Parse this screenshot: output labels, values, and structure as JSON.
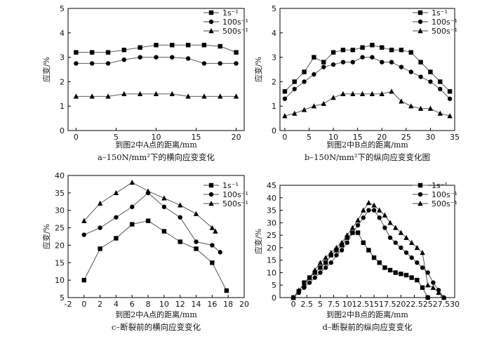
{
  "chart_data": [
    {
      "panel": "a",
      "type": "line",
      "caption": "a–150N/mm²下的横向应变变化",
      "xlabel": "到图2中A点的距离/mm",
      "ylabel": "应变/%",
      "xlim": [
        -1,
        21
      ],
      "ylim": [
        0,
        5
      ],
      "xticks": [
        0,
        5,
        10,
        15,
        20
      ],
      "yticks": [
        0,
        1,
        2,
        3,
        4,
        5
      ],
      "legend_position": "top-right",
      "series": [
        {
          "name": "1s⁻¹",
          "marker": "square",
          "x": [
            0,
            2,
            4,
            6,
            8,
            10,
            12,
            14,
            16,
            18,
            20
          ],
          "values": [
            3.2,
            3.2,
            3.2,
            3.3,
            3.4,
            3.5,
            3.5,
            3.5,
            3.5,
            3.45,
            3.2
          ]
        },
        {
          "name": "100s⁻¹",
          "marker": "circle",
          "x": [
            0,
            2,
            4,
            6,
            8,
            10,
            12,
            14,
            16,
            18,
            20
          ],
          "values": [
            2.75,
            2.75,
            2.75,
            2.9,
            3.0,
            3.0,
            3.0,
            2.95,
            2.75,
            2.75,
            2.75
          ]
        },
        {
          "name": "500s⁻¹",
          "marker": "triangle",
          "x": [
            0,
            2,
            4,
            6,
            8,
            10,
            12,
            14,
            16,
            18,
            20
          ],
          "values": [
            1.4,
            1.4,
            1.4,
            1.5,
            1.5,
            1.5,
            1.5,
            1.4,
            1.4,
            1.4,
            1.4
          ]
        }
      ]
    },
    {
      "panel": "b",
      "type": "line",
      "caption": "b–150N/mm²下的纵向应变变化图",
      "xlabel": "到图2中B点的距离/mm",
      "ylabel": "应变/%",
      "xlim": [
        -1,
        35
      ],
      "ylim": [
        0,
        5
      ],
      "xticks": [
        0,
        5,
        10,
        15,
        20,
        25,
        30,
        35
      ],
      "yticks": [
        0,
        1,
        2,
        3,
        4,
        5
      ],
      "legend_position": "top-right",
      "series": [
        {
          "name": "1s⁻¹",
          "marker": "square",
          "x": [
            0,
            2,
            4,
            6,
            8,
            10,
            12,
            14,
            16,
            18,
            20,
            22,
            24,
            26,
            28,
            30,
            32,
            34
          ],
          "values": [
            1.6,
            2.0,
            2.4,
            3.0,
            2.8,
            3.2,
            3.3,
            3.3,
            3.4,
            3.5,
            3.4,
            3.3,
            3.3,
            3.2,
            2.8,
            2.4,
            2.0,
            1.6
          ]
        },
        {
          "name": "100s⁻¹",
          "marker": "circle",
          "x": [
            0,
            2,
            4,
            6,
            8,
            10,
            12,
            14,
            16,
            18,
            20,
            22,
            24,
            26,
            28,
            30,
            32,
            34
          ],
          "values": [
            1.3,
            1.7,
            2.0,
            2.3,
            2.6,
            2.7,
            2.8,
            2.8,
            3.0,
            3.0,
            2.8,
            2.8,
            2.6,
            2.4,
            2.2,
            2.0,
            1.7,
            1.3
          ]
        },
        {
          "name": "500s⁻¹",
          "marker": "triangle",
          "x": [
            0,
            2,
            4,
            6,
            8,
            10,
            12,
            14,
            16,
            18,
            20,
            22,
            24,
            26,
            28,
            30,
            32,
            34
          ],
          "values": [
            0.6,
            0.7,
            0.85,
            1.0,
            1.1,
            1.35,
            1.5,
            1.5,
            1.5,
            1.5,
            1.5,
            1.6,
            1.2,
            1.0,
            0.9,
            0.9,
            0.7,
            0.6
          ]
        }
      ]
    },
    {
      "panel": "c",
      "type": "line",
      "caption": "c–断裂前的横向应变变化",
      "xlabel": "到图2中A点的距离/mm",
      "ylabel": "应变/%",
      "xlim": [
        -2,
        20
      ],
      "ylim": [
        5,
        40
      ],
      "xticks": [
        -2,
        0,
        2,
        4,
        6,
        8,
        10,
        12,
        14,
        16,
        18,
        20
      ],
      "yticks": [
        5,
        10,
        15,
        20,
        25,
        30,
        35,
        40
      ],
      "legend_position": "top-right",
      "series": [
        {
          "name": "1s⁻¹",
          "marker": "square",
          "x": [
            0,
            2,
            4,
            6,
            8,
            10,
            12,
            14,
            16,
            17.8
          ],
          "values": [
            10,
            19,
            22,
            26,
            27,
            24,
            21,
            19,
            15,
            7
          ]
        },
        {
          "name": "100s⁻¹",
          "marker": "circle",
          "x": [
            0,
            2,
            4,
            6,
            8,
            10,
            12,
            14,
            16,
            17
          ],
          "values": [
            23,
            25,
            28,
            31,
            35,
            31,
            28,
            21,
            20,
            18
          ]
        },
        {
          "name": "500s⁻¹",
          "marker": "triangle",
          "x": [
            0,
            2,
            4,
            6,
            8,
            10,
            12,
            14,
            16,
            16.4
          ],
          "values": [
            27,
            32,
            35,
            38,
            35.5,
            33.5,
            31.5,
            29,
            25,
            24
          ]
        }
      ]
    },
    {
      "panel": "d",
      "type": "line",
      "caption": "d–断裂前的纵向应变变化",
      "xlabel": "到图2中B点的距离/mm",
      "ylabel": "应变/%",
      "xlim": [
        -2.5,
        30
      ],
      "ylim": [
        0,
        45
      ],
      "xticks": [
        0,
        2.5,
        5,
        7.5,
        10,
        12.5,
        15,
        17.5,
        20,
        22.5,
        25,
        27.5,
        30
      ],
      "ytickvals": [
        0,
        5,
        10,
        15,
        20,
        25,
        30,
        35,
        40,
        45
      ],
      "yticks": [
        0,
        5,
        10,
        15,
        20,
        25,
        30,
        35,
        40,
        45
      ],
      "legend_position": "top-right",
      "series": [
        {
          "name": "1s⁻¹",
          "marker": "square",
          "x": [
            0,
            1,
            2,
            3,
            4,
            5,
            6,
            7,
            8,
            9,
            10,
            11,
            12,
            13,
            14,
            15,
            16,
            17,
            18,
            19,
            20,
            21,
            22,
            23,
            24,
            25
          ],
          "values": [
            0,
            2.5,
            6,
            8,
            10,
            12,
            14,
            17,
            19,
            21,
            24,
            26,
            26,
            22,
            19,
            16,
            14,
            12,
            11,
            10,
            9.5,
            9,
            8,
            7,
            4,
            0
          ]
        },
        {
          "name": "100s⁻¹",
          "marker": "circle",
          "x": [
            0,
            1,
            2,
            3,
            4,
            5,
            6,
            7,
            8,
            9,
            10,
            11,
            12,
            13,
            14,
            15,
            16,
            17,
            18,
            19,
            20,
            21,
            22,
            23,
            24,
            25,
            26,
            27,
            28
          ],
          "values": [
            0,
            2,
            4,
            6,
            8,
            10,
            12,
            14,
            17,
            19,
            22,
            26,
            29,
            32,
            35,
            35,
            32,
            28,
            24,
            22,
            20,
            18,
            16,
            14,
            12,
            10,
            6,
            3,
            0
          ]
        },
        {
          "name": "500s⁻¹",
          "marker": "triangle",
          "x": [
            0,
            1,
            2,
            3,
            4,
            5,
            6,
            7,
            8,
            9,
            10,
            11,
            12,
            13,
            14,
            15,
            16,
            17,
            18,
            19,
            20,
            21,
            22,
            23,
            24,
            25,
            26,
            27,
            28
          ],
          "values": [
            0,
            3,
            5,
            8,
            11,
            14,
            16,
            18,
            20,
            22,
            25,
            28,
            31,
            35,
            38,
            37,
            35,
            33,
            30,
            28,
            26,
            24,
            22,
            20,
            18,
            5,
            4,
            2,
            0
          ]
        }
      ]
    }
  ]
}
